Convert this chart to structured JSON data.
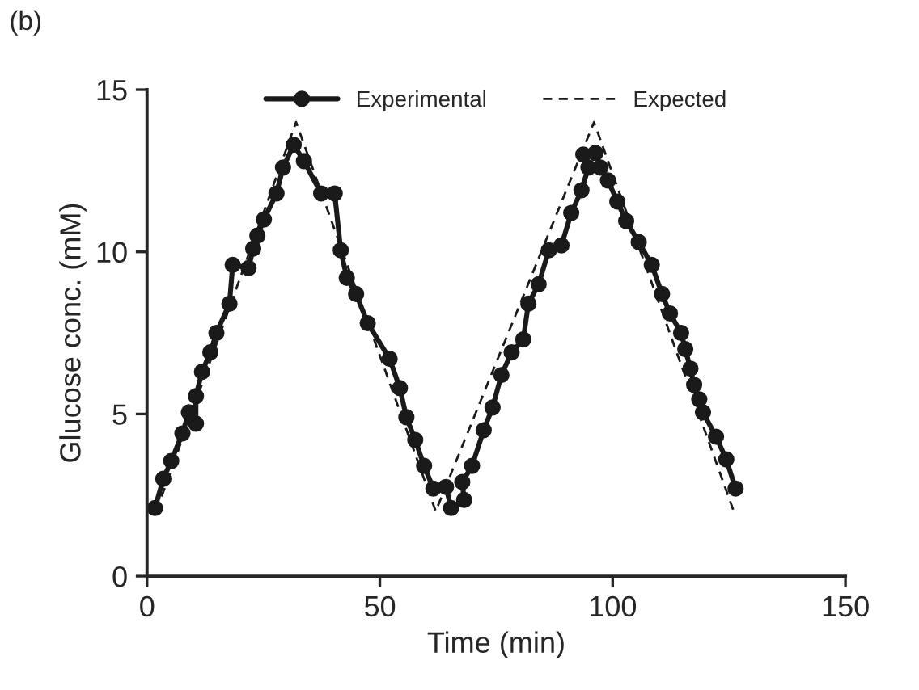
{
  "chart_data": {
    "type": "line",
    "xlabel": "Time (min)",
    "ylabel": "Glucose conc. (mM)",
    "annotations": [
      "(b)"
    ],
    "xlim": [
      0,
      150
    ],
    "xticks": [
      0,
      50,
      100,
      150
    ],
    "ylim": [
      0,
      15
    ],
    "yticks": [
      0,
      5,
      10,
      15
    ],
    "grid": false,
    "legend": "top",
    "series": [
      {
        "name": "Experimental",
        "color": "#1a1a1a",
        "marker": "circle",
        "line_style": "solid",
        "x": [
          1.7,
          3.5,
          5.2,
          7.6,
          9.0,
          10.5,
          10.5,
          11.8,
          13.6,
          14.9,
          17.7,
          18.4,
          21.8,
          22.8,
          23.7,
          25.1,
          27.8,
          29.2,
          31.5,
          33.7,
          37.4,
          40.3,
          41.6,
          42.9,
          44.9,
          47.4,
          52.1,
          54.3,
          55.7,
          57.6,
          59.5,
          61.5,
          64.2,
          65.3,
          68.1,
          67.7,
          69.8,
          72.3,
          74.2,
          76.1,
          78.3,
          80.8,
          81.9,
          84.1,
          86.3,
          89.0,
          91.1,
          93.3,
          94.8,
          93.7,
          96.3,
          97.4,
          99.0,
          101.0,
          102.9,
          105.6,
          108.4,
          110.6,
          112.3,
          114.7,
          115.6,
          116.7,
          117.5,
          118.6,
          119.4,
          122.2,
          124.4,
          126.4
        ],
        "values": [
          2.1,
          3.0,
          3.55,
          4.4,
          5.05,
          4.7,
          5.55,
          6.3,
          6.9,
          7.5,
          8.4,
          9.6,
          9.5,
          10.1,
          10.5,
          11.0,
          11.8,
          12.6,
          13.3,
          12.8,
          11.8,
          11.8,
          10.05,
          9.2,
          8.7,
          7.8,
          6.7,
          5.8,
          4.9,
          4.2,
          3.4,
          2.7,
          2.75,
          2.1,
          2.35,
          2.9,
          3.4,
          4.5,
          5.2,
          6.2,
          6.9,
          7.3,
          8.4,
          9.0,
          10.05,
          10.2,
          11.2,
          11.9,
          12.6,
          13.0,
          13.05,
          12.6,
          12.2,
          11.55,
          10.95,
          10.3,
          9.6,
          8.7,
          8.1,
          7.5,
          7.0,
          6.4,
          5.9,
          5.45,
          5.05,
          4.3,
          3.6,
          2.7
        ]
      },
      {
        "name": "Expected",
        "color": "#1a1a1a",
        "marker": "none",
        "line_style": "dashed",
        "x": [
          2,
          32,
          62,
          96,
          126
        ],
        "values": [
          2,
          14,
          2,
          14,
          2
        ]
      }
    ]
  }
}
